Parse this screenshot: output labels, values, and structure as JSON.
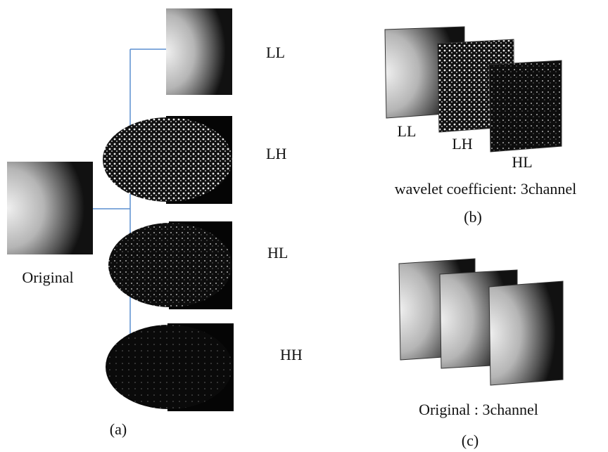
{
  "panel_a": {
    "original": "Original",
    "subbands": [
      "LL",
      "LH",
      "HL",
      "HH"
    ],
    "caption": "(a)"
  },
  "panel_b": {
    "layers": [
      "LL",
      "LH",
      "HL"
    ],
    "label": "wavelet coefficient: 3channel",
    "caption": "(b)"
  },
  "panel_c": {
    "label": "Original : 3channel",
    "caption": "(c)"
  }
}
